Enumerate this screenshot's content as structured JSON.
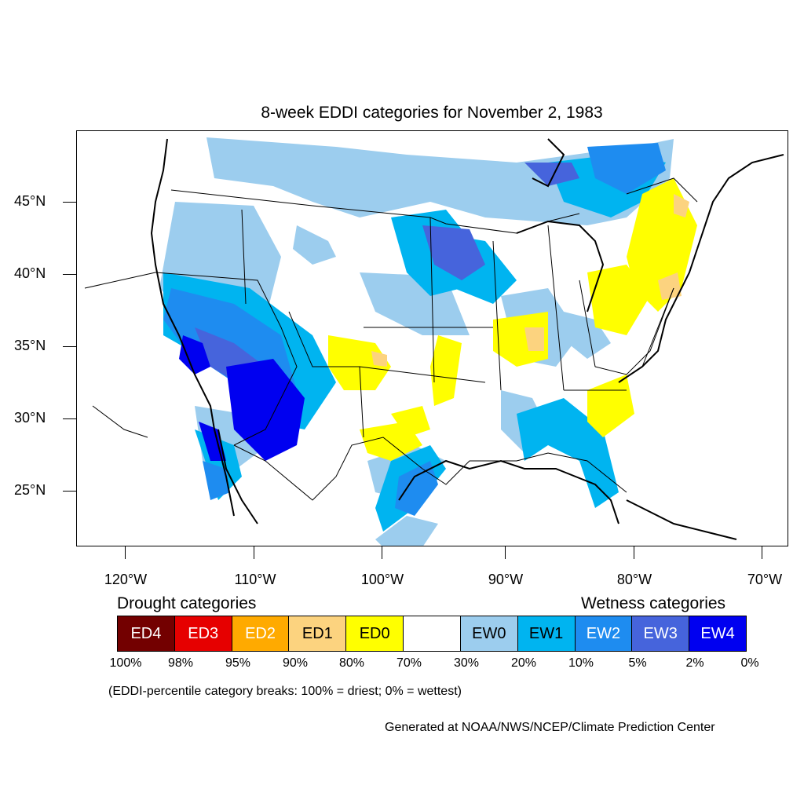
{
  "title": "8-week EDDI categories for November 2, 1983",
  "lat_labels": [
    "45°N",
    "40°N",
    "35°N",
    "30°N",
    "25°N"
  ],
  "lon_labels": [
    "120°W",
    "110°W",
    "100°W",
    "90°W",
    "80°W",
    "70°W"
  ],
  "legend": {
    "drought_heading": "Drought categories",
    "wetness_heading": "Wetness categories",
    "categories": [
      {
        "label": "ED4",
        "color": "#730000",
        "text_color": "#ffffff"
      },
      {
        "label": "ED3",
        "color": "#e60000",
        "text_color": "#ffffff"
      },
      {
        "label": "ED2",
        "color": "#ffaa00",
        "text_color": "#ffffff"
      },
      {
        "label": "ED1",
        "color": "#fcd37f",
        "text_color": "#000000"
      },
      {
        "label": "ED0",
        "color": "#ffff00",
        "text_color": "#000000"
      },
      {
        "label": "",
        "color": "#ffffff",
        "text_color": "#000000"
      },
      {
        "label": "EW0",
        "color": "#9ccdee",
        "text_color": "#000000"
      },
      {
        "label": "EW1",
        "color": "#00b4f0",
        "text_color": "#000000"
      },
      {
        "label": "EW2",
        "color": "#1e8cf0",
        "text_color": "#ffffff"
      },
      {
        "label": "EW3",
        "color": "#4664dc",
        "text_color": "#ffffff"
      },
      {
        "label": "EW4",
        "color": "#0000f0",
        "text_color": "#ffffff"
      }
    ],
    "percent_breaks": [
      "100%",
      "98%",
      "95%",
      "90%",
      "80%",
      "70%",
      "30%",
      "20%",
      "10%",
      "5%",
      "2%",
      "0%"
    ]
  },
  "note": "(EDDI-percentile category breaks: 100% = driest; 0% = wettest)",
  "credit": "Generated at NOAA/NWS/NCEP/Climate Prediction Center"
}
